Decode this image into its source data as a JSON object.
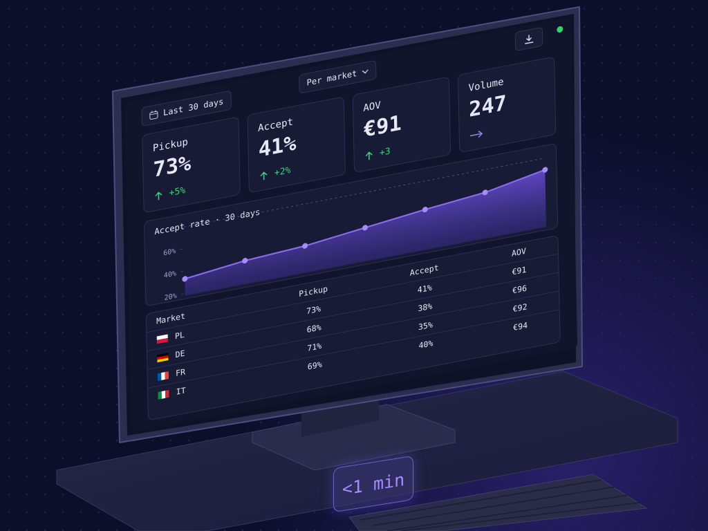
{
  "filters": {
    "date": "Last 30 days",
    "market": "Per market"
  },
  "kpis": [
    {
      "label": "Pickup",
      "value": "73%",
      "delta": "+5%"
    },
    {
      "label": "Accept",
      "value": "41%",
      "delta": "+2%"
    },
    {
      "label": "AOV",
      "value": "€91",
      "delta": "+3"
    },
    {
      "label": "Volume",
      "value": "247"
    }
  ],
  "chart": {
    "type": "area",
    "title": "Accept rate · 30 days",
    "values": [
      33,
      39,
      42,
      48,
      54,
      59,
      69
    ],
    "ylim": [
      18,
      72
    ],
    "yticks": [
      {
        "value": 20,
        "label": "20%"
      },
      {
        "value": 40,
        "label": "40%"
      },
      {
        "value": 60,
        "label": "60%"
      }
    ],
    "color": "#8b6cf0"
  },
  "table": {
    "columns": [
      "Market",
      "Pickup",
      "Accept",
      "AOV"
    ],
    "rows": [
      [
        "PL",
        "73%",
        "41%",
        "€91"
      ],
      [
        "DE",
        "68%",
        "38%",
        "€96"
      ],
      [
        "FR",
        "71%",
        "35%",
        "€92"
      ],
      [
        "IT",
        "69%",
        "40%",
        "€94"
      ]
    ]
  },
  "badge": "<1 min"
}
